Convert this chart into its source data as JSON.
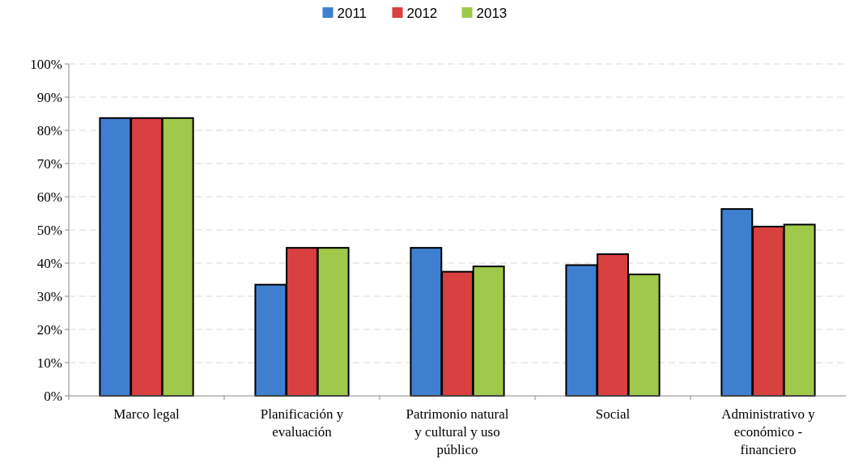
{
  "chart_data": {
    "type": "bar",
    "categories": [
      "Marco legal",
      "Planificación y evaluación",
      "Patrimonio natural y cultural y uso público",
      "Social",
      "Administrativo y económico - financiero"
    ],
    "series": [
      {
        "name": "2011",
        "color": "#3f7fd0",
        "values": [
          83.7,
          33.5,
          44.6,
          39.4,
          56.3
        ]
      },
      {
        "name": "2012",
        "color": "#d94040",
        "values": [
          83.7,
          44.6,
          37.4,
          42.7,
          51
        ]
      },
      {
        "name": "2013",
        "color": "#a0c84a",
        "values": [
          83.7,
          44.6,
          39,
          36.6,
          51.6
        ]
      }
    ],
    "ylim": [
      0,
      100
    ],
    "yticks": [
      {
        "value": 0,
        "label": "0%"
      },
      {
        "value": 10,
        "label": "10%"
      },
      {
        "value": 20,
        "label": "20%"
      },
      {
        "value": 30,
        "label": "30%"
      },
      {
        "value": 40,
        "label": "40%"
      },
      {
        "value": 50,
        "label": "50%"
      },
      {
        "value": 60,
        "label": "60%"
      },
      {
        "value": 70,
        "label": "70%"
      },
      {
        "value": 80,
        "label": "80%"
      },
      {
        "value": 90,
        "label": "90%"
      },
      {
        "value": 100,
        "label": "100%"
      }
    ],
    "grid": "y",
    "legend": "top"
  }
}
